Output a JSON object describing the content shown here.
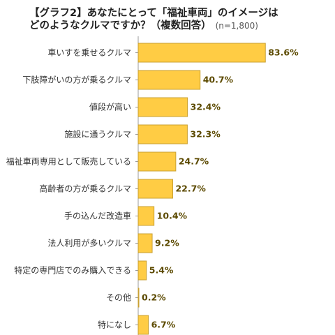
{
  "title": {
    "line1": "【グラフ2】あなたにとって「福祉車両」のイメージは",
    "line2": "どのようなクルマですか？（複数回答）",
    "note": "(n=1,800)"
  },
  "colors": {
    "bar_fill": "#FFCC44",
    "bar_stroke": "#C9A032",
    "axis": "#999999",
    "value_text": "#5C4A00"
  },
  "chart_data": {
    "type": "bar",
    "orientation": "horizontal",
    "title": "【グラフ2】あなたにとって「福祉車両」のイメージはどのようなクルマですか？（複数回答）",
    "categories": [
      "車いすを乗せるクルマ",
      "下肢障がいの方が乗るクルマ",
      "値段が高い",
      "施設に通うクルマ",
      "福祉車両専用として販売している",
      "高齢者の方が乗るクルマ",
      "手の込んだ改造車",
      "法人利用が多いクルマ",
      "特定の専門店でのみ購入できる",
      "その他",
      "特になし"
    ],
    "values": [
      83.6,
      40.7,
      32.4,
      32.3,
      24.7,
      22.7,
      10.4,
      9.2,
      5.4,
      0.2,
      6.7
    ],
    "value_labels": [
      "83.6%",
      "40.7%",
      "32.4%",
      "32.3%",
      "24.7%",
      "22.7%",
      "10.4%",
      "9.2%",
      "5.4%",
      "0.2%",
      "6.7%"
    ],
    "xlim": [
      0,
      100
    ],
    "grid": false,
    "legend": "none"
  }
}
